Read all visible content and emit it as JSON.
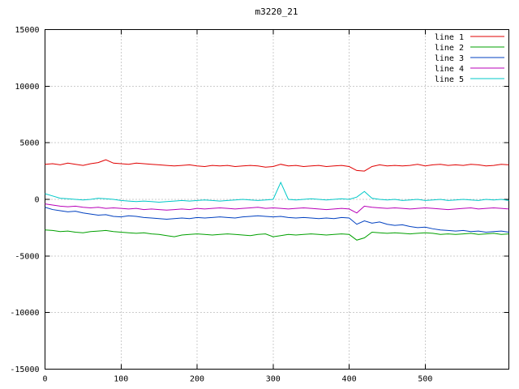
{
  "chart_data": {
    "type": "line",
    "title": "m3220_21",
    "xlim": [
      0,
      610
    ],
    "ylim": [
      -15000,
      15000
    ],
    "xticks": [
      0,
      100,
      200,
      300,
      400,
      500
    ],
    "yticks": [
      -15000,
      -10000,
      -5000,
      0,
      5000,
      10000,
      15000
    ],
    "grid": true,
    "legend_position": "top-right",
    "x": [
      0,
      10,
      20,
      30,
      40,
      50,
      60,
      70,
      80,
      90,
      100,
      110,
      120,
      130,
      140,
      150,
      160,
      170,
      180,
      190,
      200,
      210,
      220,
      230,
      240,
      250,
      260,
      270,
      280,
      290,
      300,
      310,
      320,
      330,
      340,
      350,
      360,
      370,
      380,
      390,
      400,
      410,
      420,
      430,
      440,
      450,
      460,
      470,
      480,
      490,
      500,
      510,
      520,
      530,
      540,
      550,
      560,
      570,
      580,
      590,
      600,
      610
    ],
    "series": [
      {
        "name": "line 1",
        "color": "#e00000",
        "values": [
          3100,
          3150,
          3050,
          3200,
          3100,
          3000,
          3150,
          3250,
          3500,
          3200,
          3150,
          3100,
          3200,
          3150,
          3100,
          3050,
          3000,
          2950,
          3000,
          3050,
          2950,
          2900,
          3000,
          2950,
          3000,
          2900,
          2950,
          3000,
          2950,
          2850,
          2900,
          3100,
          2950,
          3000,
          2900,
          2950,
          3000,
          2900,
          2950,
          3000,
          2900,
          2550,
          2500,
          2900,
          3050,
          2950,
          3000,
          2950,
          3000,
          3100,
          2950,
          3050,
          3100,
          3000,
          3050,
          3000,
          3100,
          3050,
          2950,
          3000,
          3100,
          3050
        ]
      },
      {
        "name": "line 2",
        "color": "#00a000",
        "values": [
          -2700,
          -2750,
          -2850,
          -2800,
          -2900,
          -2950,
          -2850,
          -2800,
          -2750,
          -2850,
          -2900,
          -2950,
          -3000,
          -2950,
          -3050,
          -3100,
          -3200,
          -3300,
          -3150,
          -3100,
          -3050,
          -3100,
          -3150,
          -3100,
          -3050,
          -3100,
          -3150,
          -3200,
          -3100,
          -3050,
          -3300,
          -3200,
          -3100,
          -3150,
          -3100,
          -3050,
          -3100,
          -3150,
          -3100,
          -3050,
          -3100,
          -3600,
          -3400,
          -2900,
          -2950,
          -3000,
          -2950,
          -3000,
          -3050,
          -3000,
          -2950,
          -3000,
          -3100,
          -3050,
          -3100,
          -3050,
          -3000,
          -3100,
          -3050,
          -3000,
          -3100,
          -3050
        ]
      },
      {
        "name": "line 3",
        "color": "#0040c0",
        "values": [
          -700,
          -900,
          -1000,
          -1100,
          -1050,
          -1200,
          -1300,
          -1400,
          -1350,
          -1500,
          -1550,
          -1450,
          -1500,
          -1600,
          -1650,
          -1700,
          -1750,
          -1700,
          -1650,
          -1700,
          -1600,
          -1650,
          -1600,
          -1550,
          -1600,
          -1650,
          -1550,
          -1500,
          -1450,
          -1500,
          -1550,
          -1500,
          -1600,
          -1650,
          -1600,
          -1650,
          -1700,
          -1650,
          -1700,
          -1600,
          -1650,
          -2200,
          -1900,
          -2100,
          -2000,
          -2200,
          -2300,
          -2250,
          -2400,
          -2500,
          -2450,
          -2600,
          -2700,
          -2750,
          -2800,
          -2750,
          -2850,
          -2800,
          -2900,
          -2850,
          -2800,
          -2900
        ]
      },
      {
        "name": "line 4",
        "color": "#b800b8",
        "values": [
          -400,
          -500,
          -600,
          -650,
          -600,
          -700,
          -750,
          -700,
          -800,
          -750,
          -800,
          -850,
          -800,
          -900,
          -850,
          -900,
          -950,
          -900,
          -850,
          -900,
          -800,
          -850,
          -800,
          -750,
          -800,
          -850,
          -800,
          -750,
          -700,
          -800,
          -750,
          -800,
          -850,
          -800,
          -750,
          -800,
          -850,
          -900,
          -850,
          -800,
          -850,
          -1200,
          -600,
          -700,
          -750,
          -800,
          -750,
          -800,
          -850,
          -800,
          -750,
          -800,
          -850,
          -900,
          -850,
          -800,
          -750,
          -850,
          -800,
          -750,
          -800,
          -850
        ]
      },
      {
        "name": "line 5",
        "color": "#00c8c8",
        "values": [
          500,
          300,
          100,
          50,
          0,
          -50,
          0,
          100,
          50,
          0,
          -100,
          -150,
          -200,
          -150,
          -200,
          -250,
          -200,
          -150,
          -100,
          -150,
          -100,
          -50,
          -100,
          -150,
          -100,
          -50,
          0,
          -50,
          -100,
          -50,
          0,
          1500,
          0,
          -50,
          0,
          50,
          0,
          -50,
          0,
          50,
          0,
          200,
          700,
          100,
          0,
          -50,
          0,
          -100,
          -50,
          0,
          -100,
          -50,
          0,
          -100,
          -50,
          0,
          -50,
          -100,
          0,
          -50,
          0,
          -100
        ]
      }
    ]
  }
}
